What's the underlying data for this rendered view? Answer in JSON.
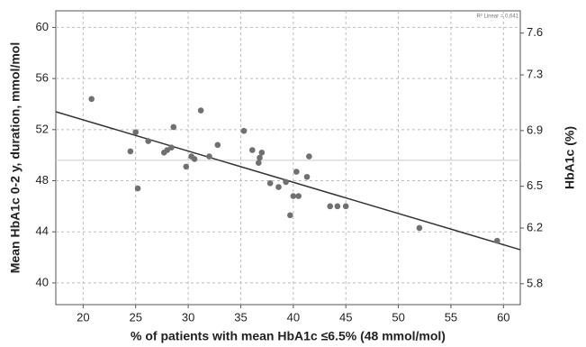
{
  "chart_data": {
    "type": "scatter",
    "x_label": "% of patients with mean HbA1c ≤6.5% (48 mmol/mol)",
    "y_label": "Mean HbA1c 0-2 y, duration, mmol/mol",
    "y2_label": "HbA1c (%)",
    "annotation": "R² Linear = 0,641",
    "color": "#707070",
    "line_color": "#333333",
    "grid": true,
    "x": [
      20.8,
      24.5,
      25.0,
      25.2,
      26.2,
      27.7,
      28.0,
      28.4,
      28.6,
      29.8,
      30.3,
      30.6,
      31.2,
      32.0,
      32.8,
      35.3,
      36.1,
      36.7,
      36.8,
      37.0,
      37.8,
      38.6,
      39.3,
      39.7,
      40.0,
      40.3,
      40.5,
      41.3,
      41.5,
      43.5,
      44.2,
      45.0,
      52.0,
      59.4
    ],
    "values": [
      54.4,
      50.3,
      51.8,
      47.4,
      51.1,
      50.2,
      50.4,
      50.6,
      52.2,
      49.1,
      49.9,
      49.7,
      53.5,
      49.9,
      50.8,
      51.9,
      50.4,
      49.4,
      49.8,
      50.2,
      47.8,
      47.5,
      47.9,
      45.3,
      46.8,
      48.7,
      46.8,
      48.3,
      49.9,
      46.0,
      46.0,
      46.0,
      44.3,
      43.3
    ],
    "trendline": {
      "x": [
        17.4,
        61.6
      ],
      "y": [
        53.4,
        42.6
      ]
    },
    "reference_line": 49.6,
    "xlim": [
      17.4,
      61.6
    ],
    "xticks": [
      20,
      25,
      30,
      35,
      40,
      45,
      50,
      55,
      60
    ],
    "ylim": [
      38.3,
      61.3
    ],
    "yticks": [
      40,
      44,
      48,
      52,
      56,
      60
    ],
    "y2lim": [
      5.65,
      7.76
    ],
    "y2ticks": [
      5.8,
      6.2,
      6.5,
      6.9,
      7.3,
      7.6
    ]
  }
}
